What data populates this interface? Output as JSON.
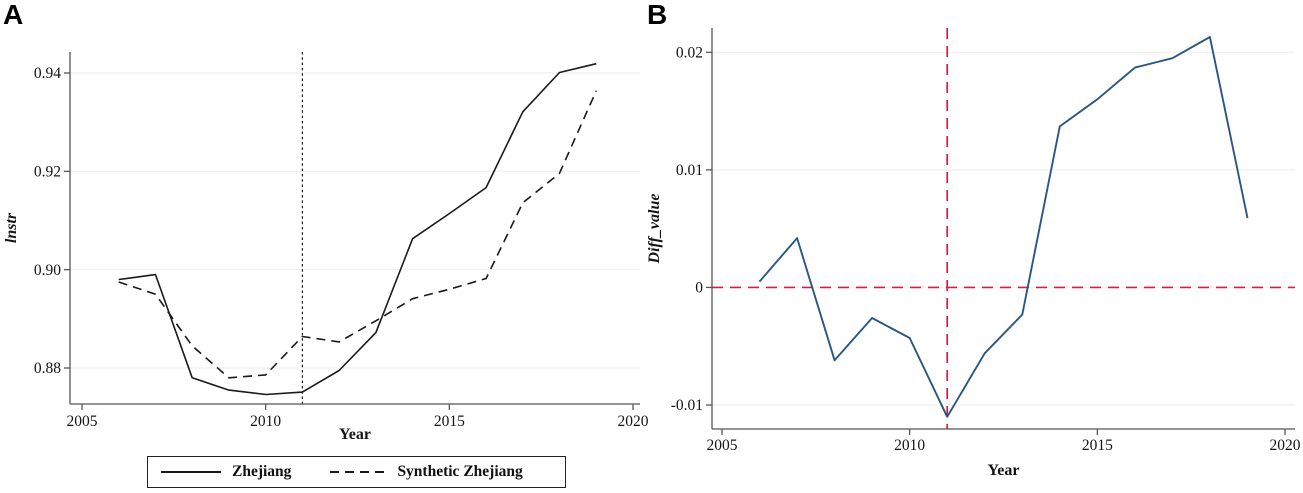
{
  "style": {
    "grid_color": "#f3eef0",
    "axis_color": "#565656",
    "text_color": "#141414",
    "line_black": "#1a1a1a",
    "line_blue": "#2a5783",
    "ref_red": "#d12045"
  },
  "chart_data": [
    {
      "type": "line",
      "panel_label": "A",
      "xlabel": "Year",
      "ylabel": "lnstr",
      "x_domain": [
        2005,
        2020
      ],
      "y_domain": [
        0.88,
        0.94
      ],
      "x_ticks": [
        2005,
        2010,
        2015,
        2020
      ],
      "y_ticks": [
        {
          "v": 0.88,
          "label": "0.88"
        },
        {
          "v": 0.9,
          "label": "0.90"
        },
        {
          "v": 0.92,
          "label": "0.92"
        },
        {
          "v": 0.94,
          "label": "0.94"
        }
      ],
      "grid": "horizontal",
      "legend_position": "bottom",
      "x": [
        2006,
        2007,
        2008,
        2009,
        2010,
        2011,
        2012,
        2013,
        2014,
        2015,
        2016,
        2017,
        2018,
        2019
      ],
      "series": [
        {
          "name": "Zhejiang",
          "dash": "solid",
          "color": "#1a1a1a",
          "width": 1.6,
          "values": [
            0.898,
            0.899,
            0.878,
            0.8755,
            0.8746,
            0.8751,
            0.8795,
            0.8872,
            0.9063,
            0.9114,
            0.9167,
            0.9321,
            0.9401,
            0.9419
          ]
        },
        {
          "name": "Synthetic Zhejiang",
          "dash": "dashed",
          "color": "#1a1a1a",
          "width": 1.6,
          "values": [
            0.8975,
            0.895,
            0.8845,
            0.878,
            0.8786,
            0.8864,
            0.8853,
            0.8896,
            0.8941,
            0.896,
            0.8982,
            0.9136,
            0.9196,
            0.9364
          ]
        }
      ],
      "ref_lines": [
        {
          "axis": "x",
          "value": 2011,
          "style": "dotted",
          "color": "#1a1a1a"
        }
      ]
    },
    {
      "type": "line",
      "panel_label": "B",
      "xlabel": "Year",
      "ylabel": "Diff_value",
      "x_domain": [
        2005,
        2020
      ],
      "y_domain": [
        -0.01,
        0.02
      ],
      "x_ticks": [
        2005,
        2010,
        2015,
        2020
      ],
      "y_ticks": [
        {
          "v": -0.01,
          "label": "-0.01"
        },
        {
          "v": 0,
          "label": "0"
        },
        {
          "v": 0.01,
          "label": "0.01"
        },
        {
          "v": 0.02,
          "label": "0.02"
        }
      ],
      "grid": "horizontal",
      "legend_position": "none",
      "x": [
        2006,
        2007,
        2008,
        2009,
        2010,
        2011,
        2012,
        2013,
        2014,
        2015,
        2016,
        2017,
        2018,
        2019
      ],
      "series": [
        {
          "name": "Diff_value",
          "dash": "solid",
          "color": "#2a5783",
          "width": 1.9,
          "values": [
            0.0005,
            0.0042,
            -0.0062,
            -0.0026,
            -0.0043,
            -0.011,
            -0.0056,
            -0.0023,
            0.0137,
            0.016,
            0.0187,
            0.0195,
            0.0213,
            0.0059
          ]
        }
      ],
      "ref_lines": [
        {
          "axis": "y",
          "value": 0,
          "style": "dashed",
          "color": "#d12045"
        },
        {
          "axis": "x",
          "value": 2011,
          "style": "dashed",
          "color": "#d12045"
        }
      ]
    }
  ]
}
